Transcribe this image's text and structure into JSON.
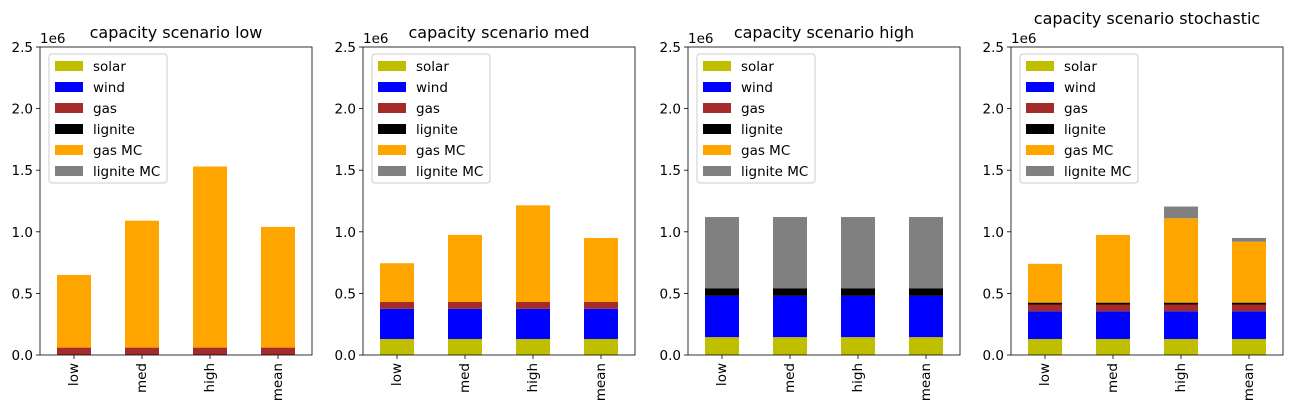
{
  "figure": {
    "legend_loc": "upper left",
    "scale_label": "1e6",
    "colors": {
      "solar": "#bfbf00",
      "wind": "#0000ff",
      "gas": "#a52a2a",
      "lignite": "#000000",
      "gas MC": "#ffa500",
      "lignite MC": "#808080"
    }
  },
  "chart_data": [
    {
      "type": "bar",
      "stacked": true,
      "title": "capacity scenario low",
      "categories": [
        "low",
        "med",
        "high",
        "mean"
      ],
      "ylim": [
        0,
        2500000
      ],
      "yticks": [
        "0.0",
        "0.5",
        "1.0",
        "1.5",
        "2.0",
        "2.5"
      ],
      "ytick_values": [
        0,
        500000,
        1000000,
        1500000,
        2000000,
        2500000
      ],
      "series": [
        {
          "name": "solar",
          "values": [
            0,
            0,
            0,
            0
          ]
        },
        {
          "name": "wind",
          "values": [
            0,
            0,
            0,
            0
          ]
        },
        {
          "name": "gas",
          "values": [
            60000,
            60000,
            60000,
            60000
          ]
        },
        {
          "name": "lignite",
          "values": [
            0,
            0,
            0,
            0
          ]
        },
        {
          "name": "gas MC",
          "values": [
            590000,
            1030000,
            1470000,
            980000
          ]
        },
        {
          "name": "lignite MC",
          "values": [
            0,
            0,
            0,
            0
          ]
        }
      ]
    },
    {
      "type": "bar",
      "stacked": true,
      "title": "capacity scenario med",
      "categories": [
        "low",
        "med",
        "high",
        "mean"
      ],
      "ylim": [
        0,
        2500000
      ],
      "yticks": [
        "0.0",
        "0.5",
        "1.0",
        "1.5",
        "2.0",
        "2.5"
      ],
      "ytick_values": [
        0,
        500000,
        1000000,
        1500000,
        2000000,
        2500000
      ],
      "series": [
        {
          "name": "solar",
          "values": [
            130000,
            130000,
            130000,
            130000
          ]
        },
        {
          "name": "wind",
          "values": [
            245000,
            245000,
            245000,
            245000
          ]
        },
        {
          "name": "gas",
          "values": [
            55000,
            55000,
            55000,
            55000
          ]
        },
        {
          "name": "lignite",
          "values": [
            0,
            0,
            0,
            0
          ]
        },
        {
          "name": "gas MC",
          "values": [
            315000,
            545000,
            785000,
            520000
          ]
        },
        {
          "name": "lignite MC",
          "values": [
            0,
            0,
            0,
            0
          ]
        }
      ]
    },
    {
      "type": "bar",
      "stacked": true,
      "title": "capacity scenario high",
      "categories": [
        "low",
        "med",
        "high",
        "mean"
      ],
      "ylim": [
        0,
        2500000
      ],
      "yticks": [
        "0.0",
        "0.5",
        "1.0",
        "1.5",
        "2.0",
        "2.5"
      ],
      "ytick_values": [
        0,
        500000,
        1000000,
        1500000,
        2000000,
        2500000
      ],
      "series": [
        {
          "name": "solar",
          "values": [
            145000,
            145000,
            145000,
            145000
          ]
        },
        {
          "name": "wind",
          "values": [
            335000,
            335000,
            335000,
            335000
          ]
        },
        {
          "name": "gas",
          "values": [
            0,
            0,
            0,
            0
          ]
        },
        {
          "name": "lignite",
          "values": [
            60000,
            60000,
            60000,
            60000
          ]
        },
        {
          "name": "gas MC",
          "values": [
            0,
            0,
            0,
            0
          ]
        },
        {
          "name": "lignite MC",
          "values": [
            580000,
            580000,
            580000,
            580000
          ]
        }
      ]
    },
    {
      "type": "bar",
      "stacked": true,
      "title": "capacity scenario stochastic",
      "categories": [
        "low",
        "med",
        "high",
        "mean"
      ],
      "ylim": [
        0,
        2500000
      ],
      "yticks": [
        "0.0",
        "0.5",
        "1.0",
        "1.5",
        "2.0",
        "2.5"
      ],
      "ytick_values": [
        0,
        500000,
        1000000,
        1500000,
        2000000,
        2500000
      ],
      "series": [
        {
          "name": "solar",
          "values": [
            130000,
            130000,
            130000,
            130000
          ]
        },
        {
          "name": "wind",
          "values": [
            225000,
            225000,
            225000,
            225000
          ]
        },
        {
          "name": "gas",
          "values": [
            55000,
            55000,
            55000,
            55000
          ]
        },
        {
          "name": "lignite",
          "values": [
            15000,
            15000,
            15000,
            15000
          ]
        },
        {
          "name": "gas MC",
          "values": [
            315000,
            550000,
            685000,
            495000
          ]
        },
        {
          "name": "lignite MC",
          "values": [
            0,
            0,
            95000,
            30000
          ]
        }
      ]
    }
  ]
}
